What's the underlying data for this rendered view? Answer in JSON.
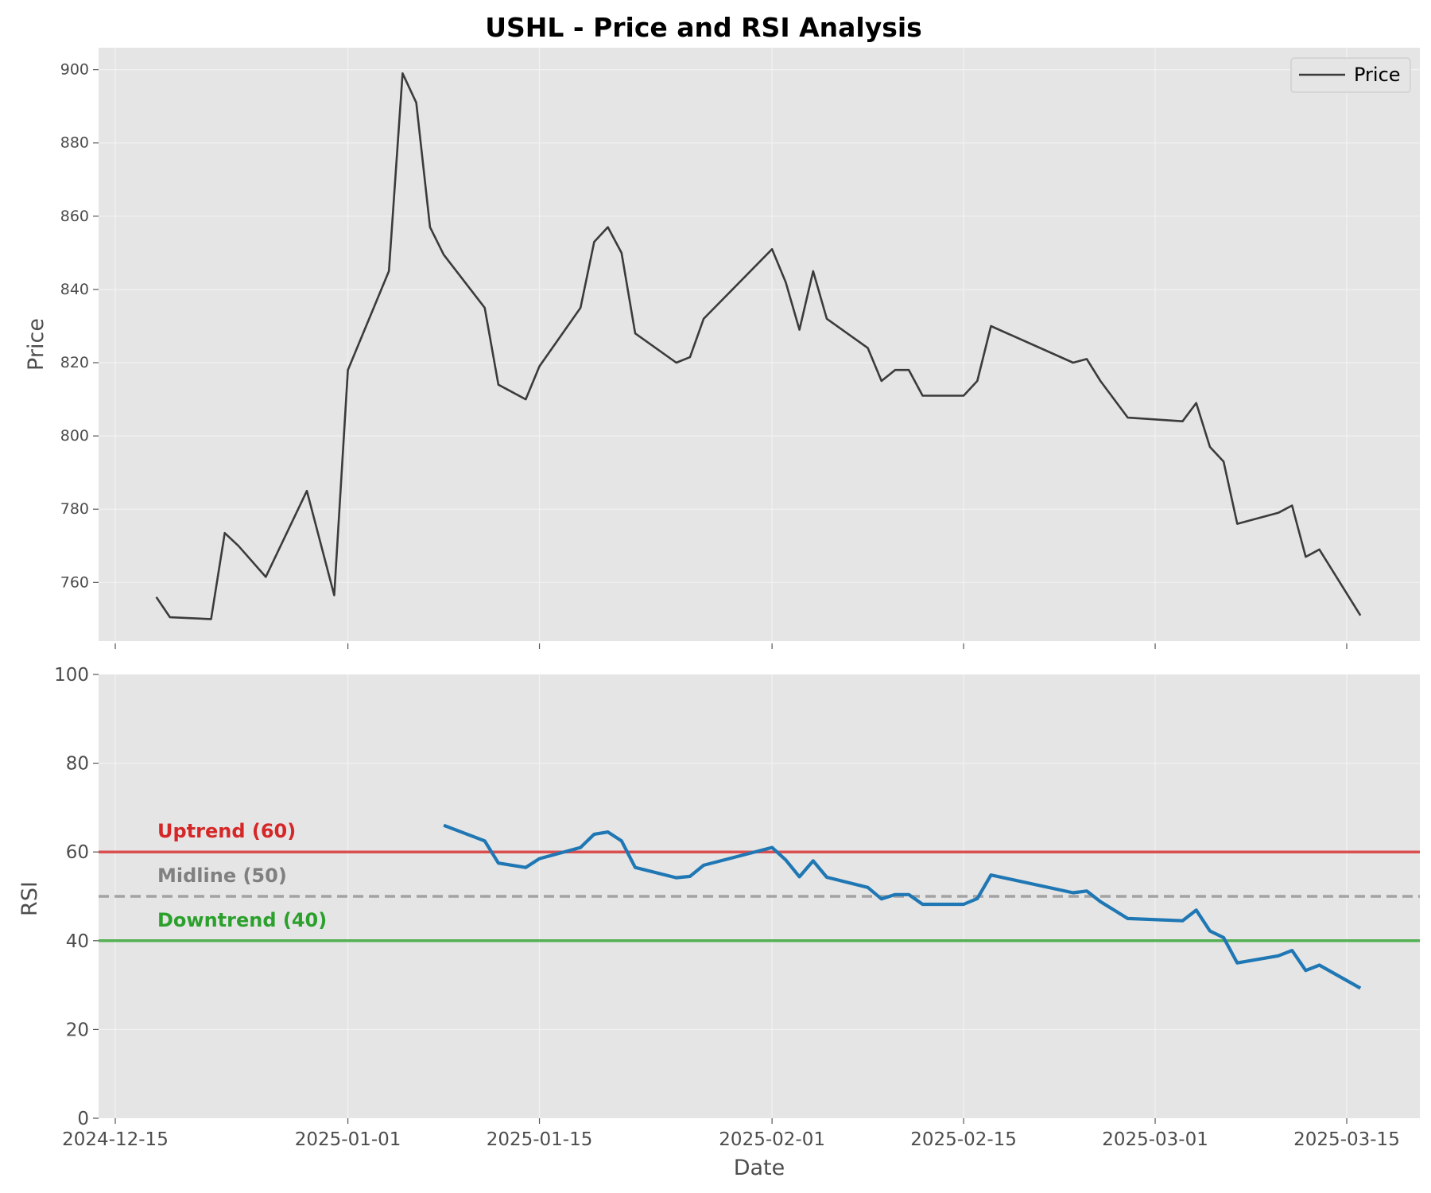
{
  "chart_data": {
    "type": "line",
    "title": "USHL - Price and RSI Analysis",
    "x_dates": [
      "2024-12-18",
      "2024-12-19",
      "2024-12-22",
      "2024-12-23",
      "2024-12-24",
      "2024-12-26",
      "2024-12-29",
      "2024-12-31",
      "2025-01-01",
      "2025-01-04",
      "2025-01-05",
      "2025-01-06",
      "2025-01-07",
      "2025-01-08",
      "2025-01-11",
      "2025-01-12",
      "2025-01-14",
      "2025-01-15",
      "2025-01-18",
      "2025-01-19",
      "2025-01-20",
      "2025-01-21",
      "2025-01-22",
      "2025-01-25",
      "2025-01-26",
      "2025-01-27",
      "2025-02-01",
      "2025-02-02",
      "2025-02-03",
      "2025-02-04",
      "2025-02-05",
      "2025-02-08",
      "2025-02-09",
      "2025-02-10",
      "2025-02-11",
      "2025-02-12",
      "2025-02-15",
      "2025-02-16",
      "2025-02-17",
      "2025-02-23",
      "2025-02-24",
      "2025-02-25",
      "2025-02-27",
      "2025-03-03",
      "2025-03-04",
      "2025-03-05",
      "2025-03-06",
      "2025-03-07",
      "2025-03-10",
      "2025-03-11",
      "2025-03-12",
      "2025-03-13",
      "2025-03-16"
    ],
    "price": [
      756,
      750.5,
      750,
      773.5,
      770,
      761.5,
      785,
      756.5,
      818,
      845,
      899,
      891,
      857,
      849.5,
      835,
      814,
      810,
      819,
      835,
      853,
      857,
      850,
      828,
      820,
      821.5,
      832,
      851,
      842,
      829,
      845,
      832,
      824,
      815,
      818,
      818,
      811,
      811,
      815,
      830,
      820,
      821,
      815,
      805,
      804,
      809,
      797,
      793,
      776,
      779,
      781,
      767,
      769,
      751
    ],
    "rsi": [
      null,
      null,
      null,
      null,
      null,
      null,
      null,
      null,
      null,
      null,
      null,
      null,
      null,
      66,
      62.5,
      57.5,
      56.5,
      58.5,
      61,
      64,
      64.5,
      62.5,
      56.5,
      54.2,
      54.5,
      57,
      61,
      58.2,
      54.4,
      58,
      54.3,
      52,
      49.4,
      50.4,
      50.4,
      48.2,
      48.2,
      49.5,
      54.8,
      50.8,
      51.2,
      48.8,
      45,
      44.5,
      46.9,
      42.2,
      40.7,
      35,
      36.6,
      37.8,
      33.3,
      34.5,
      29.3
    ],
    "price_ylabel": "Price",
    "rsi_ylabel": "RSI",
    "xlabel": "Date",
    "x_ticks": [
      "2024-12-15",
      "2025-01-01",
      "2025-01-15",
      "2025-02-01",
      "2025-02-15",
      "2025-03-01",
      "2025-03-15"
    ],
    "x_range": [
      "2024-12-15",
      "2025-03-20"
    ],
    "price_ticks": [
      760,
      780,
      800,
      820,
      840,
      860,
      880,
      900
    ],
    "price_ylim": [
      744,
      906
    ],
    "rsi_ticks": [
      0,
      20,
      40,
      60,
      80,
      100
    ],
    "rsi_ylim": [
      0,
      100
    ],
    "legend": {
      "entries": [
        "Price"
      ],
      "position": "top-right"
    },
    "reference_lines": [
      {
        "label": "Uptrend (60)",
        "value": 60,
        "color": "#d62728",
        "style": "solid"
      },
      {
        "label": "Midline (50)",
        "value": 50,
        "color": "#808080",
        "style": "dashed"
      },
      {
        "label": "Downtrend (40)",
        "value": 40,
        "color": "#2ca02c",
        "style": "solid"
      }
    ],
    "colors": {
      "price": "#3b3b3b",
      "rsi": "#1f77b4",
      "panel_bg": "#e5e5e5",
      "grid": "#f2f2f2"
    },
    "grid": true
  }
}
